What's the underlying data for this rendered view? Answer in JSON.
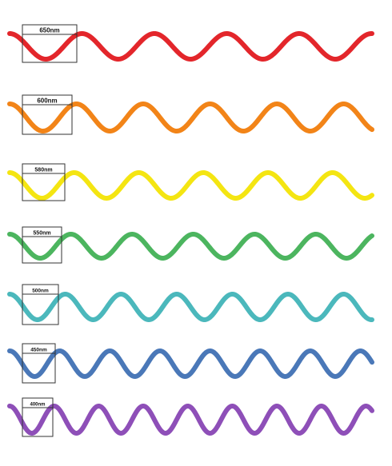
{
  "waves": [
    {
      "label": "650nm",
      "wavelength_nm": 650,
      "color": "#e3262b"
    },
    {
      "label": "600nm",
      "wavelength_nm": 600,
      "color": "#f28418"
    },
    {
      "label": "580nm",
      "wavelength_nm": 580,
      "color": "#f4e512"
    },
    {
      "label": "550nm",
      "wavelength_nm": 550,
      "color": "#4cb55f"
    },
    {
      "label": "500nm",
      "wavelength_nm": 500,
      "color": "#4bb8bc"
    },
    {
      "label": "450nm",
      "wavelength_nm": 450,
      "color": "#4a78b8"
    },
    {
      "label": "400nm",
      "wavelength_nm": 400,
      "color": "#8e4fb8"
    }
  ]
}
